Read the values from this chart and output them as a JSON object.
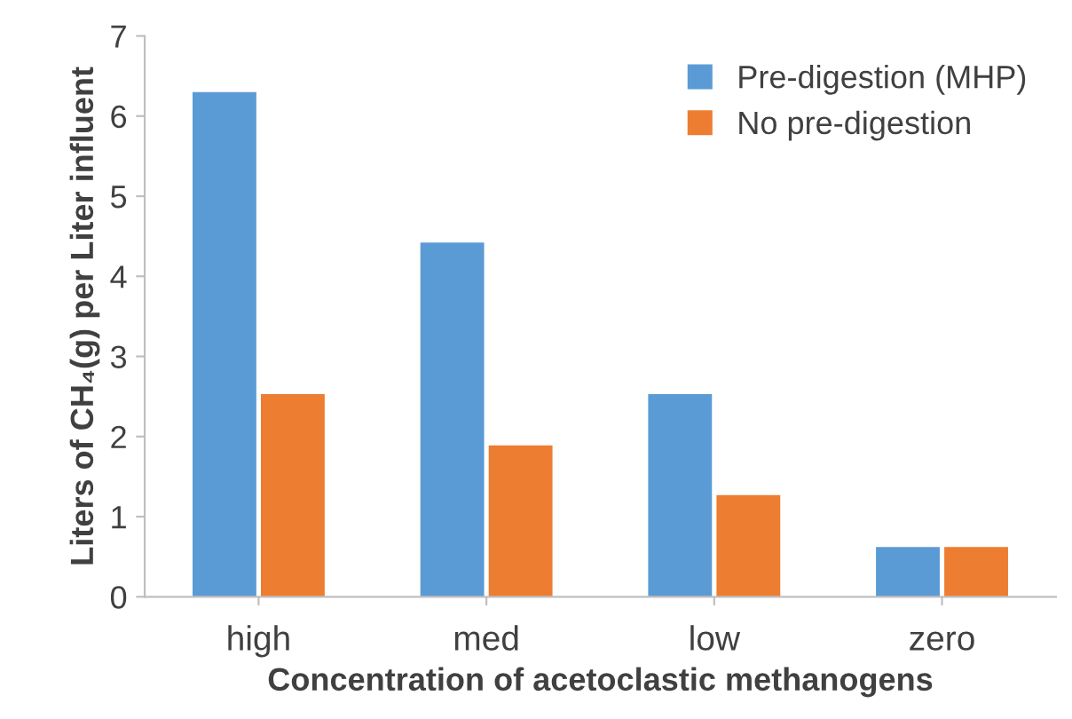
{
  "chart_data": {
    "type": "bar",
    "xlabel": "Concentration of acetoclastic methanogens",
    "ylabel": "Liters of CH₄(g) per Liter influent",
    "categories": [
      "high",
      "med",
      "low",
      "zero"
    ],
    "series": [
      {
        "name": "Pre-digestion (MHP)",
        "color": "#5b9bd5",
        "values": [
          6.3,
          4.42,
          2.53,
          0.62
        ]
      },
      {
        "name": "No pre-digestion",
        "color": "#ed7d31",
        "values": [
          2.53,
          1.89,
          1.27,
          0.62
        ]
      }
    ],
    "ylim": [
      0,
      7
    ],
    "yticks": [
      0,
      1,
      2,
      3,
      4,
      5,
      6,
      7
    ],
    "grid": false,
    "legend": "top right"
  }
}
